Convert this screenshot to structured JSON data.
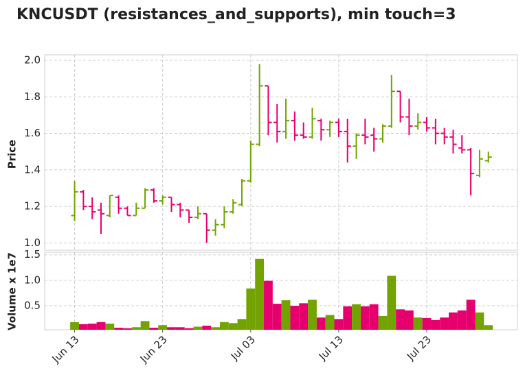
{
  "chart_data": [
    {
      "type": "ohlc",
      "title": "KNCUSDT (resistances_and_supports), min touch=3",
      "ylabel": "Price",
      "up_color": "#73a300",
      "down_color": "#e6006e",
      "open": [
        1.15,
        1.28,
        1.2,
        1.18,
        1.15,
        1.25,
        1.19,
        1.15,
        1.19,
        1.29,
        1.23,
        1.25,
        1.21,
        1.18,
        1.14,
        1.16,
        1.07,
        1.1,
        1.17,
        1.21,
        1.34,
        1.54,
        1.86,
        1.66,
        1.61,
        1.67,
        1.59,
        1.58,
        1.67,
        1.62,
        1.66,
        1.61,
        1.53,
        1.59,
        1.59,
        1.57,
        1.64,
        1.83,
        1.69,
        1.64,
        1.66,
        1.63,
        1.6,
        1.58,
        1.52,
        1.51,
        1.37,
        1.45
      ],
      "high": [
        1.34,
        1.29,
        1.25,
        1.22,
        1.26,
        1.26,
        1.2,
        1.22,
        1.3,
        1.3,
        1.26,
        1.25,
        1.22,
        1.18,
        1.2,
        1.16,
        1.13,
        1.2,
        1.24,
        1.35,
        1.56,
        1.98,
        1.86,
        1.76,
        1.79,
        1.72,
        1.66,
        1.74,
        1.68,
        1.67,
        1.68,
        1.68,
        1.6,
        1.68,
        1.63,
        1.65,
        1.92,
        1.83,
        1.79,
        1.71,
        1.69,
        1.68,
        1.63,
        1.62,
        1.59,
        1.52,
        1.51,
        1.5
      ],
      "low": [
        1.12,
        1.18,
        1.13,
        1.05,
        1.14,
        1.16,
        1.15,
        1.15,
        1.19,
        1.22,
        1.21,
        1.17,
        1.14,
        1.11,
        1.13,
        1.0,
        1.04,
        1.08,
        1.16,
        1.2,
        1.33,
        1.53,
        1.59,
        1.55,
        1.57,
        1.56,
        1.57,
        1.57,
        1.56,
        1.58,
        1.58,
        1.44,
        1.46,
        1.54,
        1.5,
        1.55,
        1.63,
        1.66,
        1.59,
        1.62,
        1.61,
        1.54,
        1.54,
        1.49,
        1.49,
        1.26,
        1.36,
        1.44
      ],
      "close": [
        1.28,
        1.2,
        1.17,
        1.16,
        1.26,
        1.19,
        1.15,
        1.19,
        1.29,
        1.23,
        1.25,
        1.21,
        1.18,
        1.14,
        1.16,
        1.07,
        1.1,
        1.17,
        1.22,
        1.34,
        1.54,
        1.86,
        1.66,
        1.61,
        1.67,
        1.59,
        1.58,
        1.68,
        1.62,
        1.66,
        1.61,
        1.53,
        1.59,
        1.58,
        1.57,
        1.64,
        1.83,
        1.69,
        1.64,
        1.66,
        1.63,
        1.6,
        1.58,
        1.54,
        1.51,
        1.38,
        1.46,
        1.47
      ],
      "ylim": [
        0.96,
        2.03
      ],
      "yticks": [
        {
          "value": 1,
          "label": "1.0"
        },
        1.2,
        1.4,
        1.6,
        1.8,
        {
          "value": 2,
          "label": "2.0"
        }
      ],
      "grid": true
    },
    {
      "type": "bar",
      "ylabel": "Volume x 1e7",
      "categories": [
        "Jun 13",
        null,
        null,
        null,
        null,
        null,
        null,
        null,
        null,
        null,
        "Jun 23",
        null,
        null,
        null,
        null,
        null,
        null,
        null,
        null,
        null,
        "Jul 03",
        null,
        null,
        null,
        null,
        null,
        null,
        null,
        null,
        null,
        "Jul 13",
        null,
        null,
        null,
        null,
        null,
        null,
        null,
        null,
        null,
        "Jul 23",
        null,
        null,
        null,
        null,
        null,
        null,
        null
      ],
      "values": [
        0.18,
        0.14,
        0.15,
        0.18,
        0.15,
        0.07,
        0.06,
        0.08,
        0.2,
        0.07,
        0.12,
        0.08,
        0.08,
        0.06,
        0.09,
        0.11,
        0.08,
        0.18,
        0.16,
        0.24,
        0.84,
        1.42,
        0.99,
        0.54,
        0.61,
        0.5,
        0.55,
        0.62,
        0.27,
        0.32,
        0.24,
        0.49,
        0.53,
        0.49,
        0.53,
        0.3,
        1.09,
        0.43,
        0.41,
        0.27,
        0.26,
        0.22,
        0.27,
        0.37,
        0.41,
        0.62,
        0.37,
        0.12
      ],
      "xlim": [
        -3.4,
        50.3
      ],
      "ylim": [
        0.03,
        1.55
      ],
      "yticks": [
        0.5,
        {
          "value": 1,
          "label": "1.0"
        },
        1.5
      ],
      "grid": true
    }
  ]
}
